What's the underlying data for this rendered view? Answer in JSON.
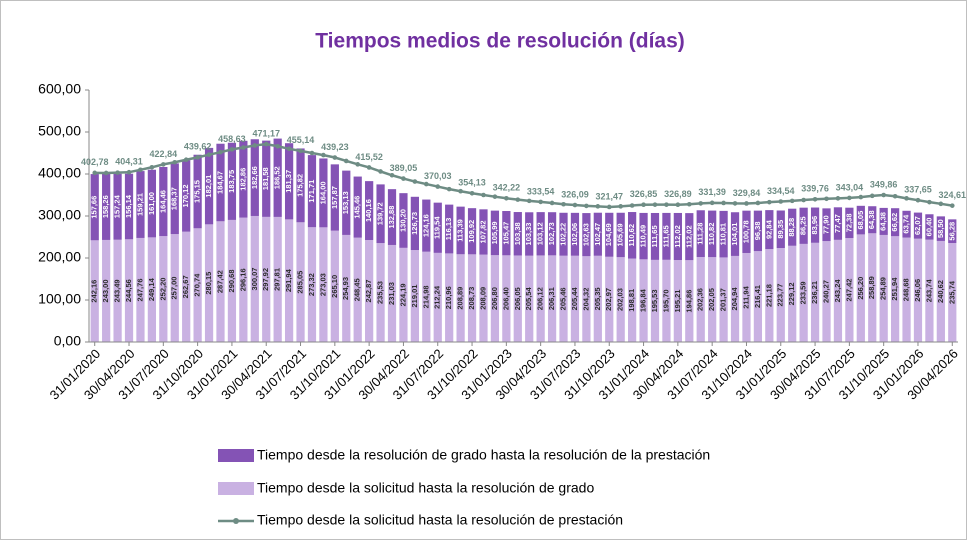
{
  "chart_data": {
    "type": "bar",
    "stacked": true,
    "title": "Tiempos medios de resolución (días)",
    "categories": [
      "31/01/2020",
      null,
      null,
      "30/04/2020",
      null,
      null,
      "31/07/2020",
      null,
      null,
      "31/10/2020",
      null,
      null,
      "31/01/2021",
      null,
      null,
      "30/04/2021",
      null,
      null,
      "31/07/2021",
      null,
      null,
      "31/10/2021",
      null,
      null,
      "31/01/2022",
      null,
      null,
      "30/04/2022",
      null,
      null,
      "31/07/2022",
      null,
      null,
      "31/10/2022",
      null,
      null,
      "31/01/2023",
      null,
      null,
      "30/04/2023",
      null,
      null,
      "31/07/2023",
      null,
      null,
      "31/10/2023",
      null,
      null,
      "31/01/2024",
      null,
      null,
      "30/04/2024",
      null,
      null,
      "31/07/2024",
      null,
      null,
      "31/10/2024",
      null,
      null,
      "31/01/2025",
      null,
      null,
      "30/04/2025",
      null,
      null,
      "31/07/2025",
      null,
      null,
      "31/10/2025",
      null,
      null,
      "31/01/2026",
      null,
      null,
      "30/04/2026"
    ],
    "ylim": [
      0,
      600
    ],
    "yticks": [
      {
        "value": 0,
        "label": "0,00"
      },
      {
        "value": 100,
        "label": "100,00"
      },
      {
        "value": 200,
        "label": "200,00"
      },
      {
        "value": 300,
        "label": "300,00"
      },
      {
        "value": 400,
        "label": "400,00"
      },
      {
        "value": 500,
        "label": "500,00"
      },
      {
        "value": 600,
        "label": "600,00"
      }
    ],
    "grid": false,
    "series": [
      {
        "name": "Tiempo desde la solicitud hasta la resolución de grado",
        "color": "#c9b1e2",
        "label_color": "#2b2b2b",
        "values": [
          242.16,
          243.0,
          243.49,
          244.56,
          247.76,
          249.14,
          252.2,
          257.0,
          262.67,
          270.74,
          280.15,
          287.42,
          290.68,
          296.16,
          300.07,
          297.92,
          297.81,
          291.94,
          285.05,
          273.32,
          273.03,
          265.1,
          254.93,
          248.45,
          242.87,
          235.53,
          231.03,
          224.19,
          219.01,
          214.98,
          212.24,
          210.96,
          208.89,
          208.73,
          208.09,
          206.8,
          206.4,
          206.05,
          205.54,
          206.12,
          206.31,
          205.46,
          205.44,
          204.32,
          205.35,
          202.97,
          202.03,
          198.81,
          196.84,
          195.53,
          195.7,
          195.21,
          194.86,
          202.36,
          202.05,
          201.37,
          204.94,
          211.94,
          216.41,
          221.18,
          223.77,
          229.12,
          233.59,
          236.21,
          240.27,
          243.24,
          247.42,
          256.2,
          258.89,
          254.89,
          251.94,
          248.68,
          246.06,
          243.74,
          240.62,
          235.74
        ],
        "value_labels": [
          "242,16",
          "243,00",
          "243,49",
          "244,56",
          "247,76",
          "249,14",
          "252,20",
          "257,00",
          "262,67",
          "270,74",
          "280,15",
          "287,42",
          "290,68",
          "296,16",
          "300,07",
          "297,92",
          "297,81",
          "291,94",
          "285,05",
          "273,32",
          "273,03",
          "265,10",
          "254,93",
          "248,45",
          "242,87",
          "235,53",
          "231,03",
          "224,19",
          "219,01",
          "214,98",
          "212,24",
          "210,96",
          "208,89",
          "208,73",
          "208,09",
          "206,80",
          "206,40",
          "206,05",
          "205,54",
          "206,12",
          "206,31",
          "205,46",
          "205,44",
          "204,32",
          "205,35",
          "202,97",
          "202,03",
          "198,81",
          "196,84",
          "195,53",
          "195,70",
          "195,21",
          "194,86",
          "202,36",
          "202,05",
          "201,37",
          "204,94",
          "211,94",
          "216,41",
          "221,18",
          "223,77",
          "229,12",
          "233,59",
          "236,21",
          "240,27",
          "243,24",
          "247,42",
          "256,20",
          "258,89",
          "254,89",
          "251,94",
          "248,68",
          "246,06",
          "243,74",
          "240,62",
          "235,74"
        ]
      },
      {
        "name": "Tiempo desde la resolución de grado hasta la resolución de la prestación",
        "color": "#8453b5",
        "label_color": "#ffffff",
        "values": [
          157.66,
          158.26,
          157.24,
          156.14,
          159.21,
          161.0,
          164.46,
          168.37,
          170.12,
          175.15,
          182.01,
          184.67,
          183.75,
          182.86,
          182.66,
          181.58,
          186.52,
          181.37,
          175.82,
          171.71,
          164.0,
          157.87,
          153.13,
          145.46,
          140.16,
          139.72,
          132.88,
          130.2,
          126.73,
          124.16,
          119.54,
          116.13,
          113.39,
          109.92,
          107.82,
          105.99,
          105.47,
          103.38,
          103.33,
          103.12,
          102.73,
          102.22,
          102.06,
          102.63,
          102.47,
          104.69,
          105.69,
          110.62,
          110.49,
          111.65,
          111.65,
          112.02,
          112.02,
          111.28,
          110.82,
          110.81,
          104.01,
          100.78,
          96.38,
          92.84,
          89.35,
          88.28,
          86.25,
          83.96,
          77.9,
          77.47,
          72.38,
          68.05,
          64.38,
          64.38,
          66.62,
          63.74,
          62.07,
          60.4,
          58.5,
          56.28
        ],
        "value_labels": [
          "157,66",
          "158,26",
          "157,24",
          "156,14",
          "159,21",
          "161,00",
          "164,46",
          "168,37",
          "170,12",
          "175,15",
          "182,01",
          "184,67",
          "183,75",
          "182,86",
          "182,66",
          "181,58",
          "186,52",
          "181,37",
          "175,82",
          "171,71",
          "164,00",
          "157,87",
          "153,13",
          "145,46",
          "140,16",
          "139,72",
          "132,88",
          "130,20",
          "126,73",
          "124,16",
          "119,54",
          "116,13",
          "113,39",
          "109,92",
          "107,82",
          "105,99",
          "105,47",
          "103,38",
          "103,33",
          "103,12",
          "102,73",
          "102,22",
          "102,06",
          "102,63",
          "102,47",
          "104,69",
          "105,69",
          "110,62",
          "110,49",
          "111,65",
          "111,65",
          "112,02",
          "112,02",
          "111,28",
          "110,82",
          "110,81",
          "104,01",
          "100,78",
          "96,38",
          "92,84",
          "89,35",
          "88,28",
          "86,25",
          "83,96",
          "77,90",
          "77,47",
          "72,38",
          "68,05",
          "64,38",
          "64,38",
          "66,62",
          "63,74",
          "62,07",
          "60,40",
          "58,50",
          "56,28"
        ]
      },
      {
        "name": "Tiempo desde la solicitud hasta la resolución de prestación",
        "type": "line",
        "color": "#6e8c84",
        "values": [
          402.78,
          402.5,
          403.2,
          404.31,
          410,
          416,
          422.84,
          428,
          434,
          439.62,
          446,
          452,
          458.63,
          463,
          468,
          471.17,
          466,
          460,
          455.14,
          450,
          445,
          439.23,
          431,
          423,
          415.52,
          406,
          397,
          389.05,
          382,
          376,
          370.03,
          364,
          359,
          354.13,
          350,
          346,
          342.22,
          339,
          336,
          333.54,
          331,
          328,
          326.09,
          324,
          323,
          321.47,
          323,
          325,
          326.85,
          327,
          327,
          326.89,
          328,
          330,
          331.39,
          331,
          330,
          329.84,
          331,
          333,
          334.54,
          336,
          338,
          339.76,
          341,
          342,
          343.04,
          345,
          348,
          349.86,
          347,
          342,
          337.65,
          333,
          329,
          324.61
        ],
        "value_labels": [
          "402,78",
          null,
          null,
          "404,31",
          null,
          null,
          "422,84",
          null,
          null,
          "439,62",
          null,
          null,
          "458,63",
          null,
          null,
          "471,17",
          null,
          null,
          "455,14",
          null,
          null,
          "439,23",
          null,
          null,
          "415,52",
          null,
          null,
          "389,05",
          null,
          null,
          "370,03",
          null,
          null,
          "354,13",
          null,
          null,
          "342,22",
          null,
          null,
          "333,54",
          null,
          null,
          "326,09",
          null,
          null,
          "321,47",
          null,
          null,
          "326,85",
          null,
          null,
          "326,89",
          null,
          null,
          "331,39",
          null,
          null,
          "329,84",
          null,
          null,
          "334,54",
          null,
          null,
          "339,76",
          null,
          null,
          "343,04",
          null,
          null,
          "349,86",
          null,
          null,
          "337,65",
          null,
          null,
          "324,61"
        ]
      }
    ]
  }
}
